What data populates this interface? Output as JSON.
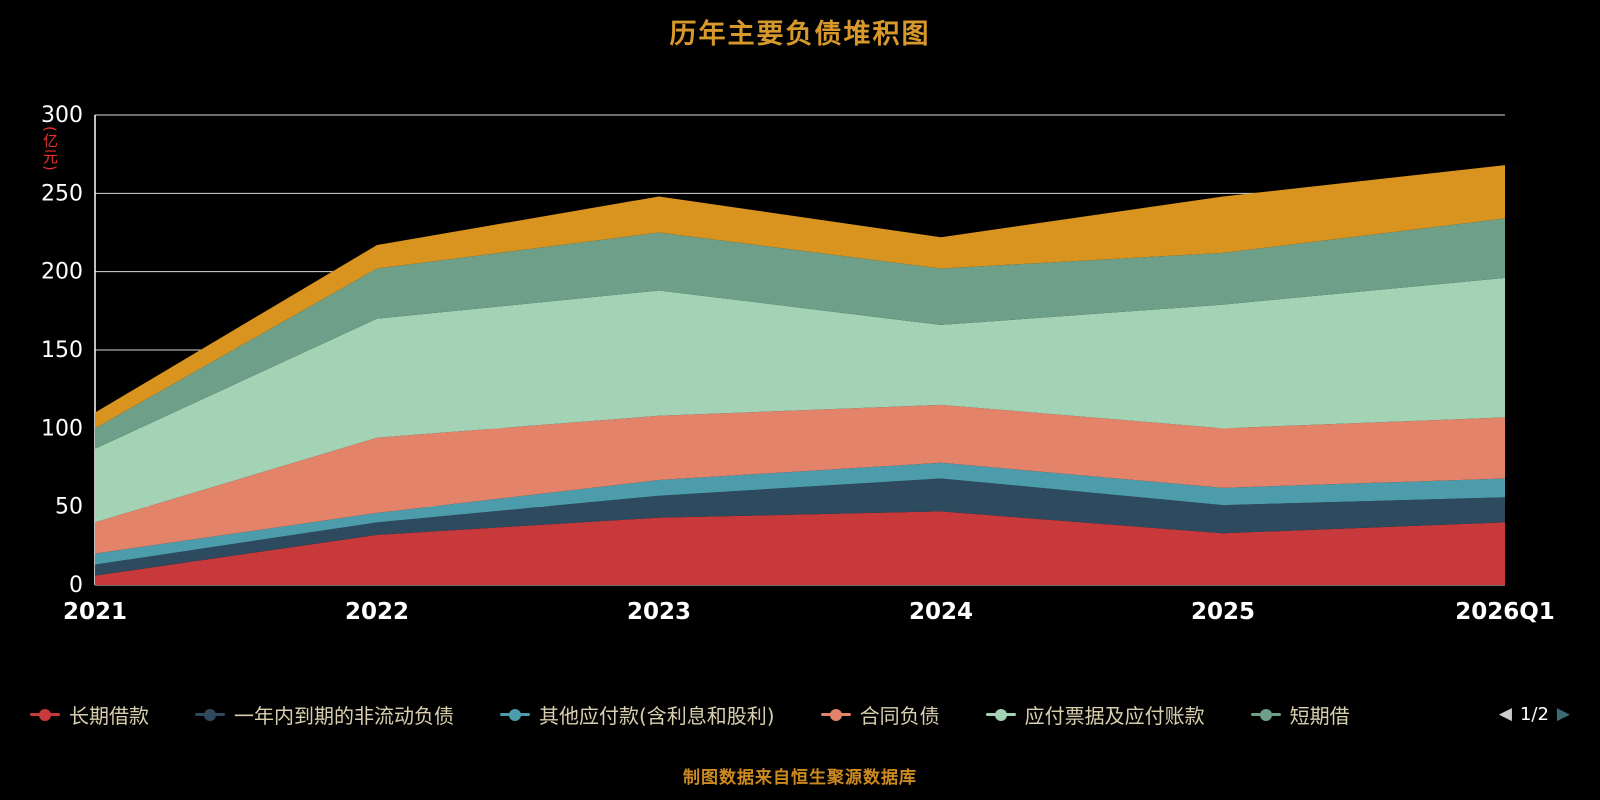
{
  "title": "历年主要负债堆积图",
  "y_axis_unit": "(亿元)",
  "footer": "制图数据来自恒生聚源数据库",
  "legend": {
    "items": [
      {
        "label": "长期借款",
        "color": "#c8393b"
      },
      {
        "label": "一年内到期的非流动负债",
        "color": "#2e4a5f"
      },
      {
        "label": "其他应付款(含利息和股利)",
        "color": "#4d9cab"
      },
      {
        "label": "合同负债",
        "color": "#e2836a"
      },
      {
        "label": "应付票据及应付账款",
        "color": "#a3d3b4"
      },
      {
        "label": "短期借",
        "color": "#6e9f88"
      }
    ],
    "pager": {
      "text": "1/2",
      "prev_arrow": "◀",
      "next_arrow": "▶"
    }
  },
  "chart_data": {
    "type": "area",
    "stacked": true,
    "title": "历年主要负债堆积图",
    "xlabel": "",
    "ylabel": "(亿元)",
    "x": [
      "2021",
      "2022",
      "2023",
      "2024",
      "2025",
      "2026Q1"
    ],
    "ylim": [
      0,
      300
    ],
    "yticks": [
      0,
      50,
      100,
      150,
      200,
      250,
      300
    ],
    "grid": true,
    "legend_position": "bottom",
    "series": [
      {
        "name": "长期借款",
        "color": "#c8393b",
        "values": [
          6,
          32,
          43,
          47,
          33,
          40
        ]
      },
      {
        "name": "一年内到期的非流动负债",
        "color": "#2e4a5f",
        "values": [
          7,
          8,
          14,
          21,
          18,
          16
        ]
      },
      {
        "name": "其他应付款(含利息和股利)",
        "color": "#4d9cab",
        "values": [
          7,
          6,
          10,
          10,
          11,
          12
        ]
      },
      {
        "name": "合同负债",
        "color": "#e2836a",
        "values": [
          20,
          48,
          41,
          37,
          38,
          39
        ]
      },
      {
        "name": "应付票据及应付账款",
        "color": "#a3d3b4",
        "values": [
          47,
          76,
          80,
          51,
          79,
          89
        ]
      },
      {
        "name": "短期借",
        "color": "#6e9f88",
        "values": [
          13,
          32,
          37,
          36,
          33,
          38
        ]
      },
      {
        "name": "",
        "color": "#d8941e",
        "values": [
          10,
          15,
          23,
          20,
          36,
          34
        ]
      }
    ]
  },
  "style": {
    "grid_color": "#d9d9d9",
    "axis_text_color": "#ffffff",
    "title_color": "#d7992c",
    "footer_color": "#cc8a20",
    "unit_color": "#e8302e"
  }
}
